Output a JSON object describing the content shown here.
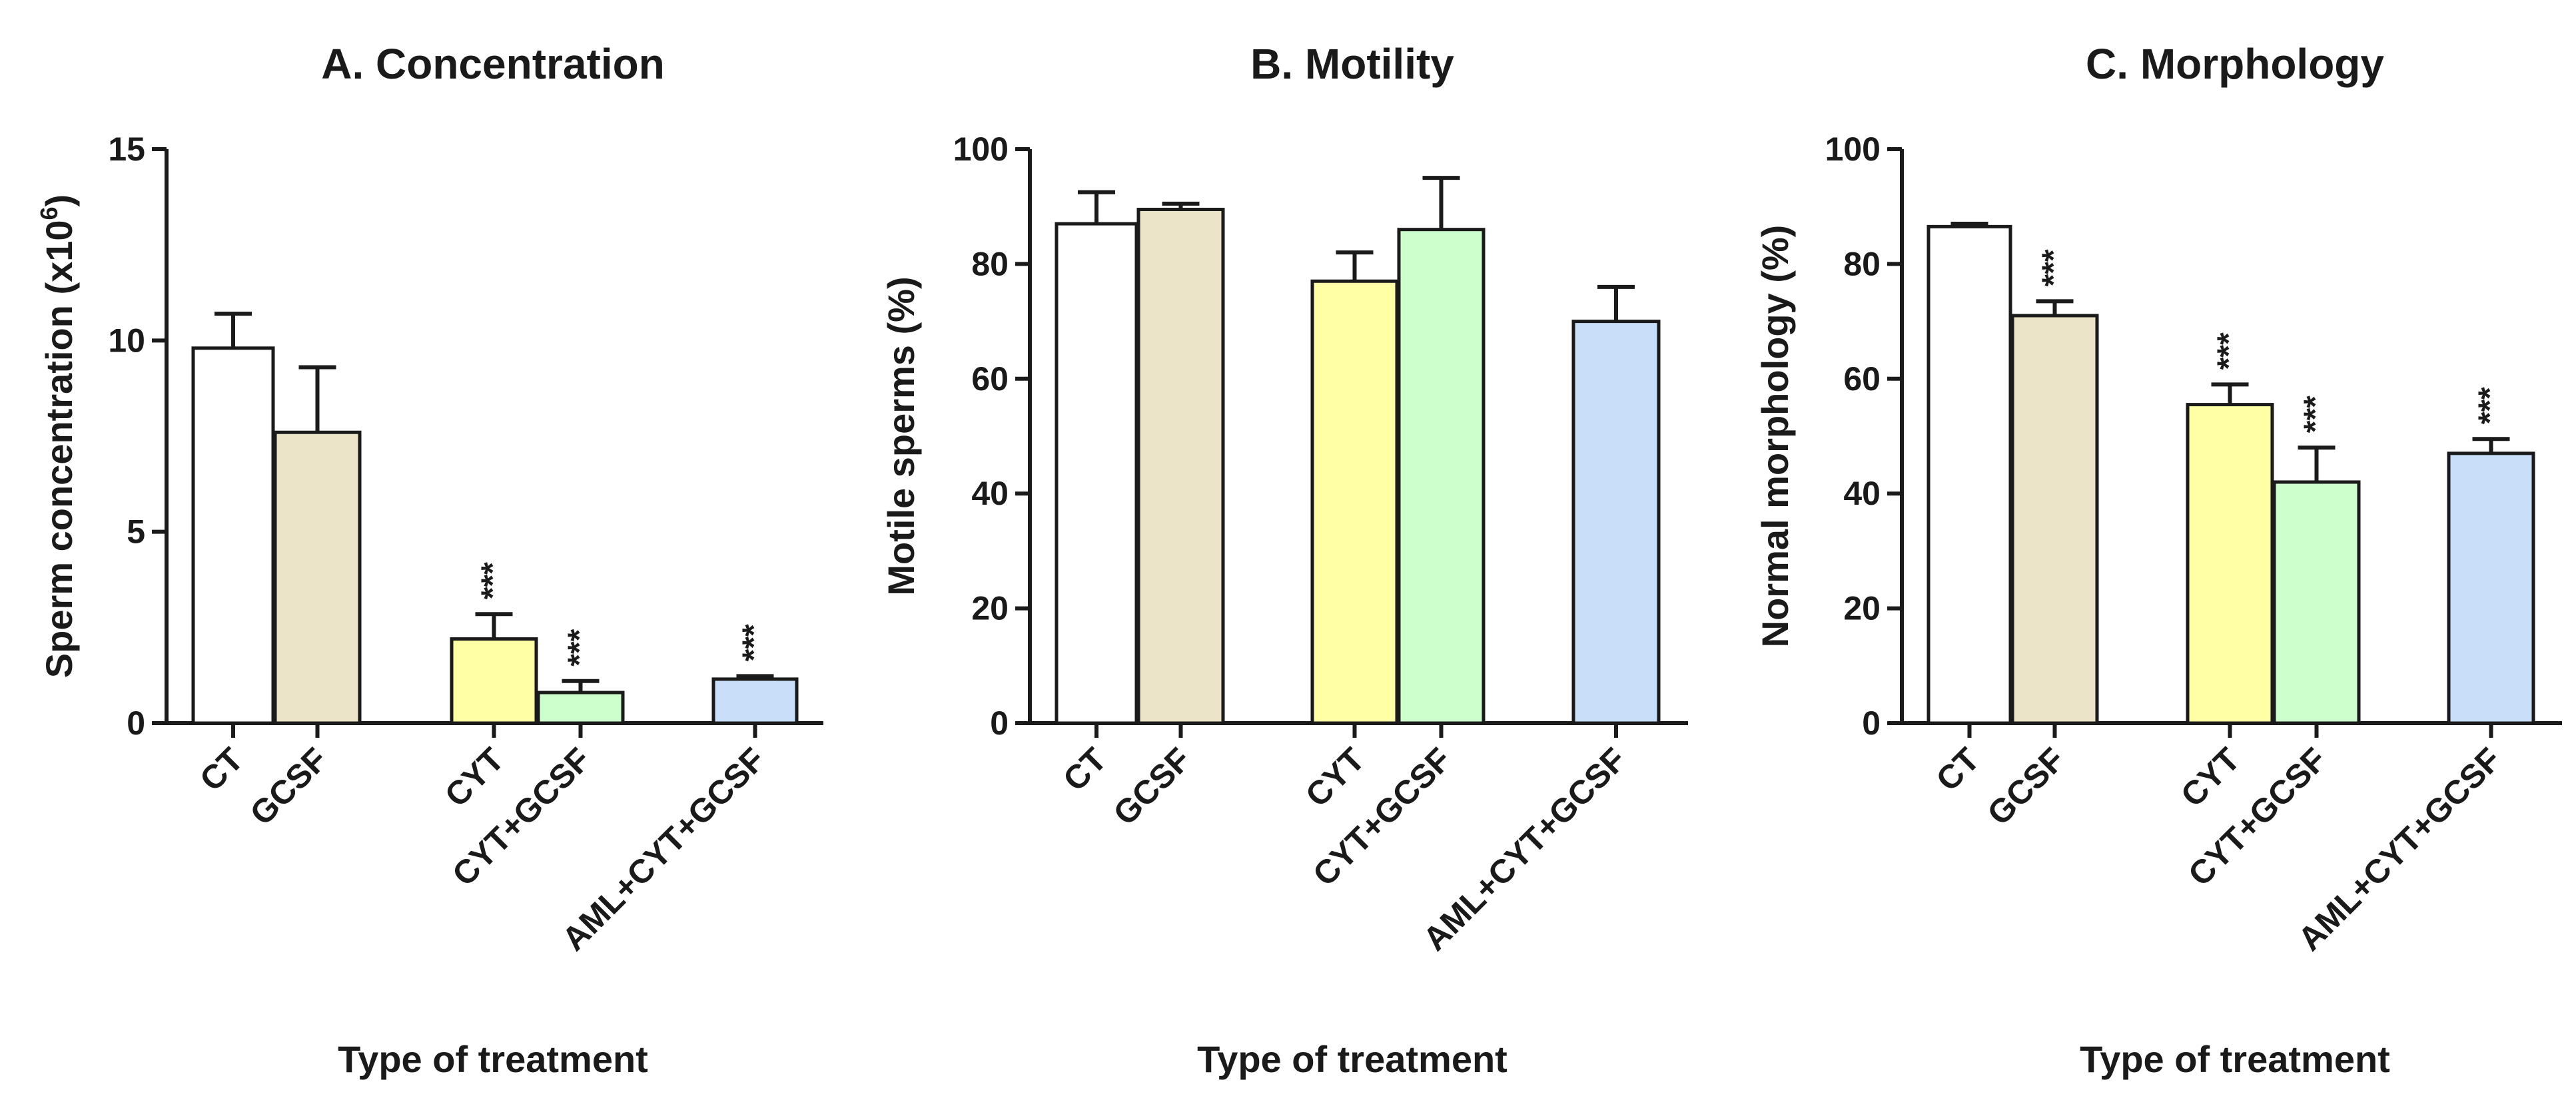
{
  "chart_data": [
    {
      "type": "bar",
      "title": "A. Concentration",
      "xlabel": "Type of treatment",
      "ylabel": "Sperm concentration (x10",
      "ylabel_sup": "6",
      "ylabel_close": ")",
      "ylim": [
        0,
        15
      ],
      "yticks": [
        "0",
        "5",
        "10",
        "15"
      ],
      "categories": [
        "CT",
        "GCSF",
        "CYT",
        "CYT+GCSF",
        "AML+CYT+GCSF"
      ],
      "values": [
        9.8,
        7.6,
        2.2,
        0.8,
        1.15
      ],
      "errors": [
        0.9,
        1.7,
        0.65,
        0.3,
        0.08
      ],
      "significance": [
        "",
        "",
        "***",
        "***",
        "***"
      ],
      "colors": [
        "#ffffff",
        "#ebe4c9",
        "#ffffa5",
        "#ccffcc",
        "#c9def9"
      ]
    },
    {
      "type": "bar",
      "title": "B. Motility",
      "xlabel": "Type of treatment",
      "ylabel": "Motile sperms (%)",
      "ylim": [
        0,
        100
      ],
      "yticks": [
        "0",
        "20",
        "40",
        "60",
        "80",
        "100"
      ],
      "categories": [
        "CT",
        "GCSF",
        "CYT",
        "CYT+GCSF",
        "AML+CYT+GCSF"
      ],
      "values": [
        87,
        89.5,
        77,
        86,
        70
      ],
      "errors": [
        5.5,
        1,
        5,
        9,
        6
      ],
      "significance": [
        "",
        "",
        "",
        "",
        ""
      ],
      "colors": [
        "#ffffff",
        "#ebe4c9",
        "#ffffa5",
        "#ccffcc",
        "#c9def9"
      ]
    },
    {
      "type": "bar",
      "title": "C. Morphology",
      "xlabel": "Type of treatment",
      "ylabel": "Normal morphology (%)",
      "ylim": [
        0,
        100
      ],
      "yticks": [
        "0",
        "20",
        "40",
        "60",
        "80",
        "100"
      ],
      "categories": [
        "CT",
        "GCSF",
        "CYT",
        "CYT+GCSF",
        "AML+CYT+GCSF"
      ],
      "values": [
        86.5,
        71,
        55.5,
        42,
        47
      ],
      "errors": [
        0.5,
        2.5,
        3.5,
        6,
        2.5
      ],
      "significance": [
        "",
        "***",
        "***",
        "***",
        "***"
      ],
      "colors": [
        "#ffffff",
        "#ebe4c9",
        "#ffffa5",
        "#ccffcc",
        "#c9def9"
      ]
    }
  ]
}
